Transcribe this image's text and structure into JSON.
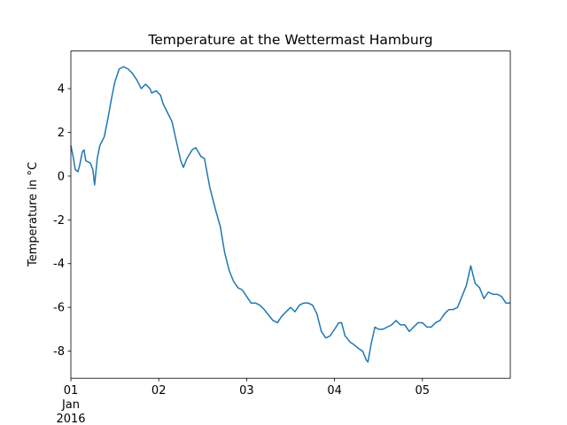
{
  "chart_data": {
    "type": "line",
    "title": "Temperature at the Wettermast Hamburg",
    "y_label": "Temperature in °C",
    "x_tick_sublabels": [
      "Jan",
      "2016"
    ],
    "x": [
      0.0,
      0.03,
      0.05,
      0.08,
      0.1,
      0.13,
      0.15,
      0.17,
      0.22,
      0.25,
      0.27,
      0.3,
      0.33,
      0.38,
      0.42,
      0.46,
      0.5,
      0.55,
      0.6,
      0.65,
      0.7,
      0.75,
      0.8,
      0.85,
      0.9,
      0.92,
      0.97,
      1.02,
      1.05,
      1.1,
      1.15,
      1.2,
      1.25,
      1.28,
      1.32,
      1.38,
      1.42,
      1.48,
      1.52,
      1.58,
      1.65,
      1.7,
      1.75,
      1.8,
      1.85,
      1.9,
      1.95,
      2.0,
      2.05,
      2.1,
      2.15,
      2.2,
      2.3,
      2.35,
      2.4,
      2.45,
      2.5,
      2.55,
      2.6,
      2.65,
      2.7,
      2.75,
      2.8,
      2.85,
      2.9,
      2.95,
      3.0,
      3.05,
      3.08,
      3.12,
      3.18,
      3.22,
      3.28,
      3.32,
      3.36,
      3.38,
      3.42,
      3.46,
      3.5,
      3.55,
      3.6,
      3.65,
      3.7,
      3.75,
      3.8,
      3.85,
      3.9,
      3.95,
      4.0,
      4.05,
      4.1,
      4.15,
      4.2,
      4.25,
      4.3,
      4.35,
      4.4,
      4.45,
      4.5,
      4.55,
      4.6,
      4.65,
      4.7,
      4.75,
      4.8,
      4.85,
      4.9,
      4.95,
      5.0
    ],
    "series": [
      {
        "name": "Temperature",
        "color": "#1f77b4",
        "values": [
          1.4,
          0.8,
          0.3,
          0.2,
          0.5,
          1.1,
          1.2,
          0.7,
          0.6,
          0.3,
          -0.4,
          0.8,
          1.4,
          1.8,
          2.6,
          3.5,
          4.3,
          4.9,
          5.0,
          4.9,
          4.7,
          4.4,
          4.0,
          4.2,
          4.0,
          3.8,
          3.9,
          3.7,
          3.3,
          2.9,
          2.5,
          1.6,
          0.7,
          0.4,
          0.8,
          1.2,
          1.3,
          0.9,
          0.8,
          -0.5,
          -1.6,
          -2.3,
          -3.5,
          -4.3,
          -4.8,
          -5.1,
          -5.2,
          -5.5,
          -5.8,
          -5.8,
          -5.9,
          -6.1,
          -6.6,
          -6.7,
          -6.4,
          -6.2,
          -6.0,
          -6.2,
          -5.9,
          -5.8,
          -5.8,
          -5.9,
          -6.3,
          -7.1,
          -7.4,
          -7.3,
          -7.0,
          -6.7,
          -6.7,
          -7.3,
          -7.6,
          -7.7,
          -7.9,
          -8.0,
          -8.4,
          -8.5,
          -7.6,
          -6.9,
          -7.0,
          -7.0,
          -6.9,
          -6.8,
          -6.6,
          -6.8,
          -6.8,
          -7.1,
          -6.9,
          -6.7,
          -6.7,
          -6.9,
          -6.9,
          -6.7,
          -6.6,
          -6.3,
          -6.1,
          -6.1,
          -6.0,
          -5.5,
          -5.0,
          -4.1,
          -4.9,
          -5.1,
          -5.6,
          -5.3,
          -5.4,
          -5.4,
          -5.5,
          -5.8,
          -5.8
        ]
      }
    ],
    "xlim": [
      0,
      5
    ],
    "xticks": [
      {
        "value": 0,
        "label": "01"
      },
      {
        "value": 1,
        "label": "02"
      },
      {
        "value": 2,
        "label": "03"
      },
      {
        "value": 3,
        "label": "04"
      },
      {
        "value": 4,
        "label": "05"
      }
    ],
    "ylim": [
      -9.24,
      5.72
    ],
    "yticks": [
      -8,
      -6,
      -4,
      -2,
      0,
      2,
      4
    ],
    "grid": false
  }
}
